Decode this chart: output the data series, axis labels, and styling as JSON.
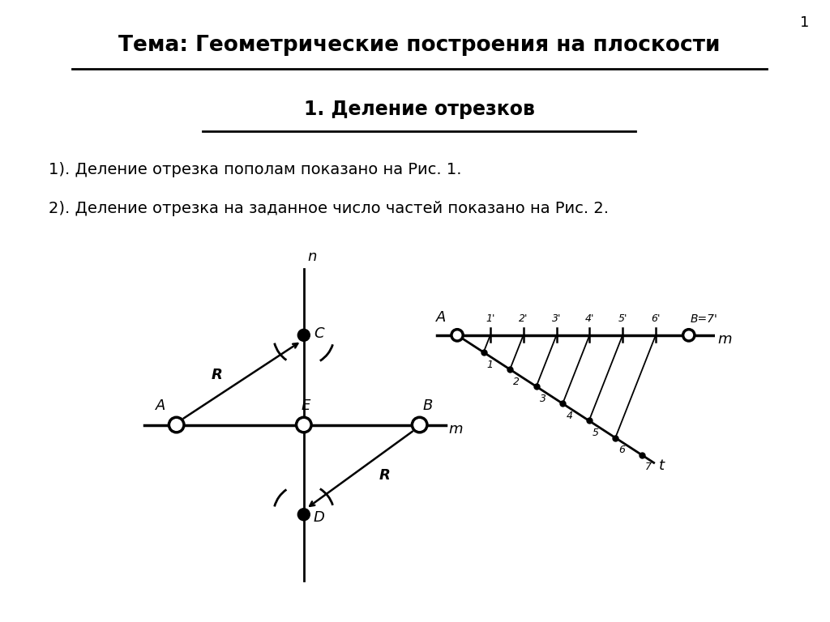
{
  "title1": "Тема: Геометрические построения на плоскости",
  "title2": "1. Деление отрезков",
  "text_line1": "1). Деление отрезка пополам показано на Рис. 1.",
  "text_line2": "2). Деление отрезка на заданное число частей показано на Рис. 2.",
  "bg_color": "#ffffff",
  "header1_bg": "#e06000",
  "header2_bg": "#e06000",
  "text_bg": "#aadddd",
  "diagram_bg": "#ffffcc",
  "inner_diagram_bg": "#ffffff",
  "page_number": "1"
}
